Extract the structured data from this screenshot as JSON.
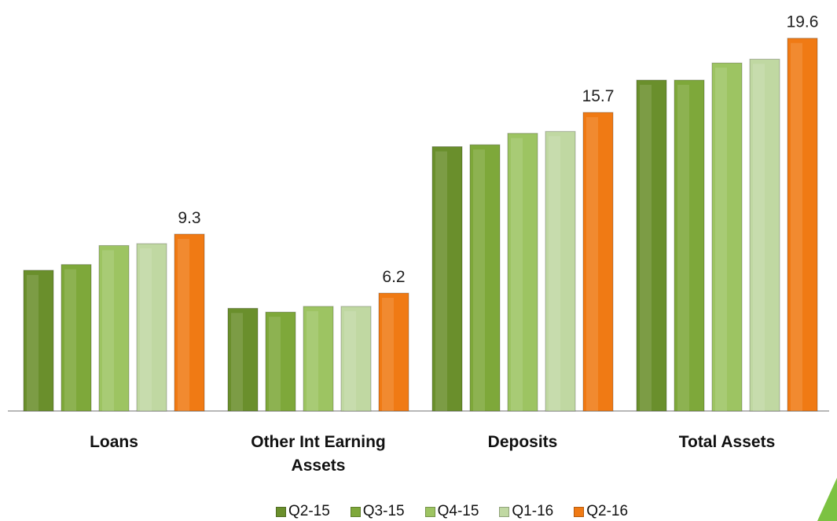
{
  "chart_data": {
    "type": "bar",
    "categories": [
      "Loans",
      "Other Int Earning Assets",
      "Deposits",
      "Total Assets"
    ],
    "series": [
      {
        "name": "Q2-15",
        "color": "#6a8f2c",
        "values": [
          7.4,
          5.4,
          13.9,
          17.4
        ]
      },
      {
        "name": "Q3-15",
        "color": "#7ea83a",
        "values": [
          7.7,
          5.2,
          14.0,
          17.4
        ]
      },
      {
        "name": "Q4-15",
        "color": "#9dc462",
        "values": [
          8.7,
          5.5,
          14.6,
          18.3
        ]
      },
      {
        "name": "Q1-16",
        "color": "#c0d8a2",
        "values": [
          8.8,
          5.5,
          14.7,
          18.5
        ]
      },
      {
        "name": "Q2-16",
        "color": "#f07a14",
        "values": [
          9.3,
          6.2,
          15.7,
          19.6
        ],
        "data_labels": true
      }
    ],
    "ylim": [
      0,
      20
    ]
  }
}
